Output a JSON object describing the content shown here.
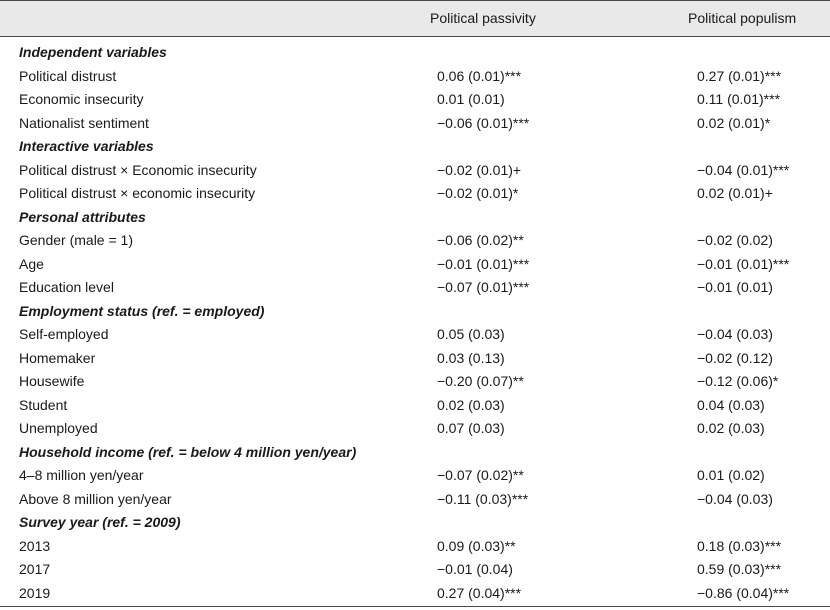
{
  "columns": [
    "Political passivity",
    "Political populism"
  ],
  "rows": [
    {
      "type": "section",
      "label": "Independent variables"
    },
    {
      "type": "data",
      "label": "Political distrust",
      "v1": "0.06 (0.01)***",
      "v2": "0.27 (0.01)***"
    },
    {
      "type": "data",
      "label": "Economic insecurity",
      "v1": "0.01 (0.01)",
      "v2": "0.11 (0.01)***"
    },
    {
      "type": "data",
      "label": "Nationalist sentiment",
      "v1": "−0.06 (0.01)***",
      "v2": "0.02 (0.01)*"
    },
    {
      "type": "section",
      "label": "Interactive variables"
    },
    {
      "type": "data",
      "label": "Political distrust × Economic insecurity",
      "v1": "−0.02 (0.01)+",
      "v2": "−0.04 (0.01)***"
    },
    {
      "type": "data",
      "label": "Political distrust × economic insecurity",
      "v1": "−0.02 (0.01)*",
      "v2": "0.02 (0.01)+"
    },
    {
      "type": "section",
      "label": "Personal attributes"
    },
    {
      "type": "data",
      "label": "Gender (male = 1)",
      "v1": "−0.06 (0.02)**",
      "v2": "−0.02 (0.02)"
    },
    {
      "type": "data",
      "label": "Age",
      "v1": "−0.01 (0.01)***",
      "v2": "−0.01 (0.01)***"
    },
    {
      "type": "data",
      "label": "Education level",
      "v1": "−0.07 (0.01)***",
      "v2": "−0.01 (0.01)"
    },
    {
      "type": "section",
      "label": "Employment status (ref. = employed)"
    },
    {
      "type": "data",
      "label": "Self-employed",
      "v1": "0.05 (0.03)",
      "v2": "−0.04 (0.03)"
    },
    {
      "type": "data",
      "label": "Homemaker",
      "v1": "0.03 (0.13)",
      "v2": "−0.02 (0.12)"
    },
    {
      "type": "data",
      "label": "Housewife",
      "v1": "−0.20 (0.07)**",
      "v2": "−0.12 (0.06)*"
    },
    {
      "type": "data",
      "label": "Student",
      "v1": "0.02 (0.03)",
      "v2": "0.04 (0.03)"
    },
    {
      "type": "data",
      "label": "Unemployed",
      "v1": "0.07 (0.03)",
      "v2": "0.02 (0.03)"
    },
    {
      "type": "section",
      "label": "Household income (ref. = below 4 million yen/year)"
    },
    {
      "type": "data",
      "label": "4–8 million yen/year",
      "v1": "−0.07 (0.02)**",
      "v2": "0.01 (0.02)"
    },
    {
      "type": "data",
      "label": "Above 8 million yen/year",
      "v1": "−0.11 (0.03)***",
      "v2": "−0.04 (0.03)"
    },
    {
      "type": "section",
      "label": "Survey year (ref. = 2009)"
    },
    {
      "type": "data",
      "label": "2013",
      "v1": "0.09 (0.03)**",
      "v2": "0.18 (0.03)***"
    },
    {
      "type": "data",
      "label": "2017",
      "v1": "−0.01 (0.04)",
      "v2": "0.59 (0.03)***"
    },
    {
      "type": "data",
      "label": "2019",
      "v1": "0.27 (0.04)***",
      "v2": "−0.86 (0.04)***"
    }
  ]
}
